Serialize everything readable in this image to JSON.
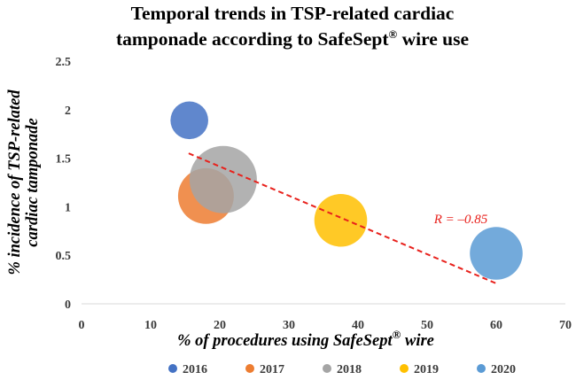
{
  "chart_data": {
    "type": "scatter",
    "title_line1": "Temporal trends in TSP-related cardiac",
    "title_line2_main": "tamponade according to SafeSept",
    "title_line2_sup": "®",
    "title_line2_end": " wire use",
    "xlabel_main": "% of procedures using SafeSept",
    "xlabel_sup": "®",
    "xlabel_end": " wire",
    "ylabel_line1": "% incidence of TSP-related",
    "ylabel_line2": "cardiac tamponade",
    "xlim": [
      0,
      70
    ],
    "ylim": [
      0,
      2.5
    ],
    "x_ticks": [
      "0",
      "10",
      "20",
      "30",
      "40",
      "50",
      "60",
      "70"
    ],
    "y_ticks": [
      "0",
      "0.5",
      "1",
      "1.5",
      "2",
      "2.5"
    ],
    "grid": false,
    "legend_position": "bottom",
    "series": [
      {
        "name": "2016",
        "x": 15.6,
        "y": 1.89,
        "size": 2.2,
        "color": "#4472c4"
      },
      {
        "name": "2017",
        "x": 18.0,
        "y": 1.11,
        "size": 4.8,
        "color": "#ed7d31"
      },
      {
        "name": "2018",
        "x": 20.5,
        "y": 1.28,
        "size": 7.0,
        "color": "#a5a5a5"
      },
      {
        "name": "2019",
        "x": 37.5,
        "y": 0.86,
        "size": 4.3,
        "color": "#ffc000"
      },
      {
        "name": "2020",
        "x": 60.0,
        "y": 0.52,
        "size": 4.3,
        "color": "#5b9bd5"
      }
    ],
    "trendline": {
      "x": [
        15.5,
        60
      ],
      "y": [
        1.55,
        0.21
      ],
      "color": "#e8211c",
      "style": "dashed"
    },
    "annotation": "R = –0.85"
  }
}
